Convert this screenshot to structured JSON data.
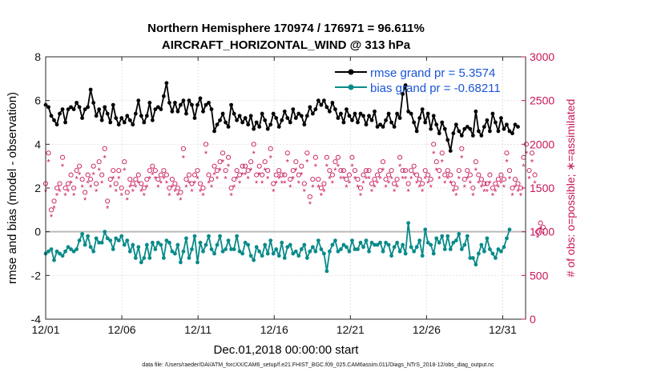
{
  "chart_data": {
    "type": "line",
    "title_line1": "Northern Hemisphere 170974 / 176971 = 96.611%",
    "title_line2": "AIRCRAFT_HORIZONTAL_WIND @ 313 hPa",
    "xlabel": "Dec.01,2018 00:00:00 start",
    "ylabel": "rmse and bias (model - observation)",
    "ylabel_right": "# of obs: o=possible; ∗=assimilated",
    "footer": "data file: /Users/raeder/DAI/ATM_forcXX/CAM6_setup/f.e21.FHIST_BGC.f09_025.CAM6assim.011/Diags_NTrS_2018-12/obs_diag_output.nc",
    "x_tick_labels": [
      "12/01",
      "12/06",
      "12/11",
      "12/16",
      "12/21",
      "12/26",
      "12/31"
    ],
    "x_tick_days": [
      0,
      5,
      10,
      15,
      20,
      25,
      30
    ],
    "xlim": [
      0,
      31.5
    ],
    "ylim": [
      -4,
      8
    ],
    "y_ticks": [
      "-4",
      "-2",
      "0",
      "2",
      "4",
      "6",
      "8"
    ],
    "ylim_right": [
      0,
      3000
    ],
    "y_ticks_right": [
      "0",
      "500",
      "1000",
      "1500",
      "2000",
      "2500",
      "3000"
    ],
    "legend": [
      {
        "label": "rmse grand pr = 5.3574",
        "color": "#000000"
      },
      {
        "label": "bias grand pr = -0.68211",
        "color": "#0a8a8a"
      }
    ],
    "colors": {
      "rmse": "#000000",
      "bias": "#0a8a8a",
      "obs": "#c8165a",
      "zero": "#bbbbbb"
    },
    "series_rmse": [
      5.8,
      5.7,
      5.3,
      5.1,
      4.9,
      5.4,
      5.6,
      5.0,
      5.6,
      5.7,
      5.6,
      5.9,
      5.7,
      5.2,
      5.6,
      5.7,
      6.5,
      5.9,
      5.3,
      5.6,
      5.1,
      5.7,
      5.4,
      5.0,
      5.8,
      5.2,
      4.9,
      5.2,
      5.0,
      5.3,
      5.1,
      4.9,
      5.4,
      6.0,
      5.3,
      5.0,
      5.3,
      5.9,
      5.1,
      5.6,
      5.7,
      5.6,
      6.2,
      6.8,
      5.9,
      5.5,
      5.9,
      5.5,
      5.8,
      6.0,
      5.4,
      6.0,
      5.8,
      5.2,
      5.8,
      6.1,
      5.5,
      5.8,
      5.9,
      5.6,
      4.6,
      4.9,
      5.1,
      5.4,
      5.0,
      4.8,
      5.8,
      5.4,
      5.1,
      5.3,
      5.0,
      5.2,
      4.9,
      5.3,
      4.7,
      5.0,
      4.8,
      5.4,
      5.1,
      4.7,
      4.9,
      5.4,
      5.2,
      4.8,
      5.1,
      5.5,
      5.2,
      5.0,
      5.6,
      5.2,
      5.4,
      5.3,
      4.9,
      5.3,
      5.7,
      5.4,
      5.6,
      6.0,
      5.8,
      6.0,
      5.7,
      5.5,
      5.9,
      5.6,
      5.2,
      5.4,
      5.0,
      5.6,
      5.3,
      5.1,
      5.4,
      5.0,
      5.4,
      5.3,
      4.9,
      5.3,
      5.1,
      5.5,
      4.8,
      4.9,
      4.8,
      5.1,
      5.4,
      5.0,
      4.8,
      5.4,
      5.2,
      6.3,
      6.7,
      5.5,
      5.4,
      5.0,
      4.6,
      5.2,
      5.6,
      5.0,
      5.4,
      4.7,
      5.3,
      4.9,
      4.5,
      5.0,
      4.7,
      4.2,
      3.7,
      4.5,
      4.9,
      4.6,
      4.4,
      4.7,
      4.8,
      4.7,
      4.4,
      5.5,
      4.6,
      4.4,
      4.8,
      5.1,
      4.6,
      5.4,
      5.0,
      4.6,
      5.2,
      4.7,
      4.9,
      4.6,
      4.5,
      4.9,
      4.8
    ],
    "series_bias": [
      -1.0,
      -0.9,
      -0.8,
      -1.3,
      -0.9,
      -1.0,
      -1.1,
      -0.9,
      -0.7,
      -0.8,
      -0.9,
      -0.8,
      -0.4,
      -0.1,
      -0.6,
      -0.2,
      -0.7,
      -0.9,
      -0.3,
      -0.5,
      -0.5,
      0.0,
      -0.3,
      -0.4,
      -0.8,
      -0.3,
      -0.4,
      -0.2,
      -0.6,
      -0.4,
      -0.9,
      -0.6,
      -1.2,
      -0.7,
      -1.4,
      -1.2,
      -0.6,
      -1.2,
      -0.5,
      -0.8,
      -0.5,
      -0.6,
      -1.2,
      -0.4,
      -0.5,
      -0.9,
      -1.0,
      -0.6,
      -1.4,
      -0.9,
      -0.3,
      -1.2,
      -0.8,
      -0.2,
      -1.4,
      -0.5,
      -0.9,
      -0.6,
      -0.2,
      -0.8,
      -1.0,
      -0.6,
      -0.2,
      -0.9,
      -0.8,
      -0.4,
      -0.8,
      -0.8,
      -0.2,
      -0.9,
      -1.0,
      -0.5,
      -0.6,
      -1.1,
      -1.3,
      -0.7,
      -0.9,
      -1.1,
      -0.6,
      -1.0,
      -0.4,
      -1.0,
      -0.8,
      -1.1,
      -0.5,
      -1.2,
      -0.7,
      -0.6,
      -1.0,
      -0.9,
      -1.1,
      -0.8,
      -0.6,
      -1.2,
      -0.9,
      -0.7,
      -0.9,
      -0.4,
      -0.8,
      -1.0,
      -1.8,
      -0.9,
      -0.6,
      -0.4,
      -0.9,
      -0.8,
      -0.6,
      -0.7,
      -0.9,
      -0.4,
      -0.8,
      -0.8,
      -0.5,
      -0.7,
      -0.4,
      -0.9,
      -0.5,
      -0.6,
      -0.6,
      -0.5,
      -0.9,
      -0.5,
      -0.6,
      -1.1,
      -0.7,
      -0.5,
      -0.9,
      -0.6,
      -1.0,
      0.4,
      -0.7,
      -0.9,
      -0.7,
      -0.4,
      -1.1,
      0.1,
      -0.5,
      -0.6,
      -1.0,
      -0.3,
      -0.5,
      -0.2,
      -0.8,
      -0.2,
      -0.8,
      -0.5,
      -0.4,
      -0.1,
      -0.8,
      -0.6,
      -0.2,
      -1.2,
      -1.2,
      -1.5,
      -1.0,
      -0.6,
      -0.9,
      -0.3,
      -0.8,
      -1.0,
      -1.2,
      -0.8,
      -0.9,
      -0.7,
      -0.3,
      0.1
    ],
    "series_obs_possible": [
      1550,
      1900,
      1250,
      1350,
      1500,
      1550,
      1850,
      1500,
      1550,
      1650,
      1500,
      1700,
      1750,
      1600,
      1450,
      1650,
      1600,
      1750,
      1550,
      1800,
      1650,
      1950,
      1350,
      1600,
      1700,
      1550,
      1700,
      1500,
      1800,
      1450,
      1600,
      1550,
      1600,
      1650,
      1550,
      1500,
      1600,
      1700,
      1750,
      1700,
      1600,
      1650,
      1700,
      1650,
      1500,
      1600,
      1550,
      1500,
      1450,
      1950,
      1600,
      1650,
      1550,
      1650,
      1700,
      1550,
      1500,
      2000,
      1650,
      1600,
      1750,
      1700,
      1800,
      1900,
      1700,
      1850,
      1500,
      1600,
      1700,
      1650,
      1750,
      1750,
      1700,
      1800,
      2000,
      1650,
      1750,
      1650,
      1800,
      1700,
      1950,
      1550,
      1650,
      1700,
      1650,
      1650,
      1900,
      1600,
      1700,
      1800,
      1650,
      1750,
      1550,
      1900,
      1400,
      1600,
      1850,
      1600,
      1500,
      1550,
      1850,
      1700,
      1650,
      1800,
      1850,
      1700,
      1700,
      1600,
      1650,
      1850,
      1700,
      1600,
      1500,
      1650,
      1700,
      1700,
      1550,
      1600,
      1650,
      1700,
      1800,
      1600,
      1650,
      1700,
      1550,
      1600,
      1850,
      1700,
      1700,
      1550,
      1700,
      1750,
      1650,
      1600,
      1550,
      1700,
      1650,
      1600,
      2000,
      1800,
      1700,
      1900,
      1650,
      1700,
      1650,
      1550,
      1500,
      1700,
      1950,
      1600,
      1700,
      1650,
      1500,
      1800,
      1650,
      1600,
      1550,
      1550,
      1650,
      1500,
      1550,
      1600,
      1650,
      1600,
      1900,
      1700,
      1500,
      1600,
      1550,
      1500,
      1850,
      2000,
      1700,
      1900,
      1650,
      1000,
      1100,
      1050
    ]
  }
}
